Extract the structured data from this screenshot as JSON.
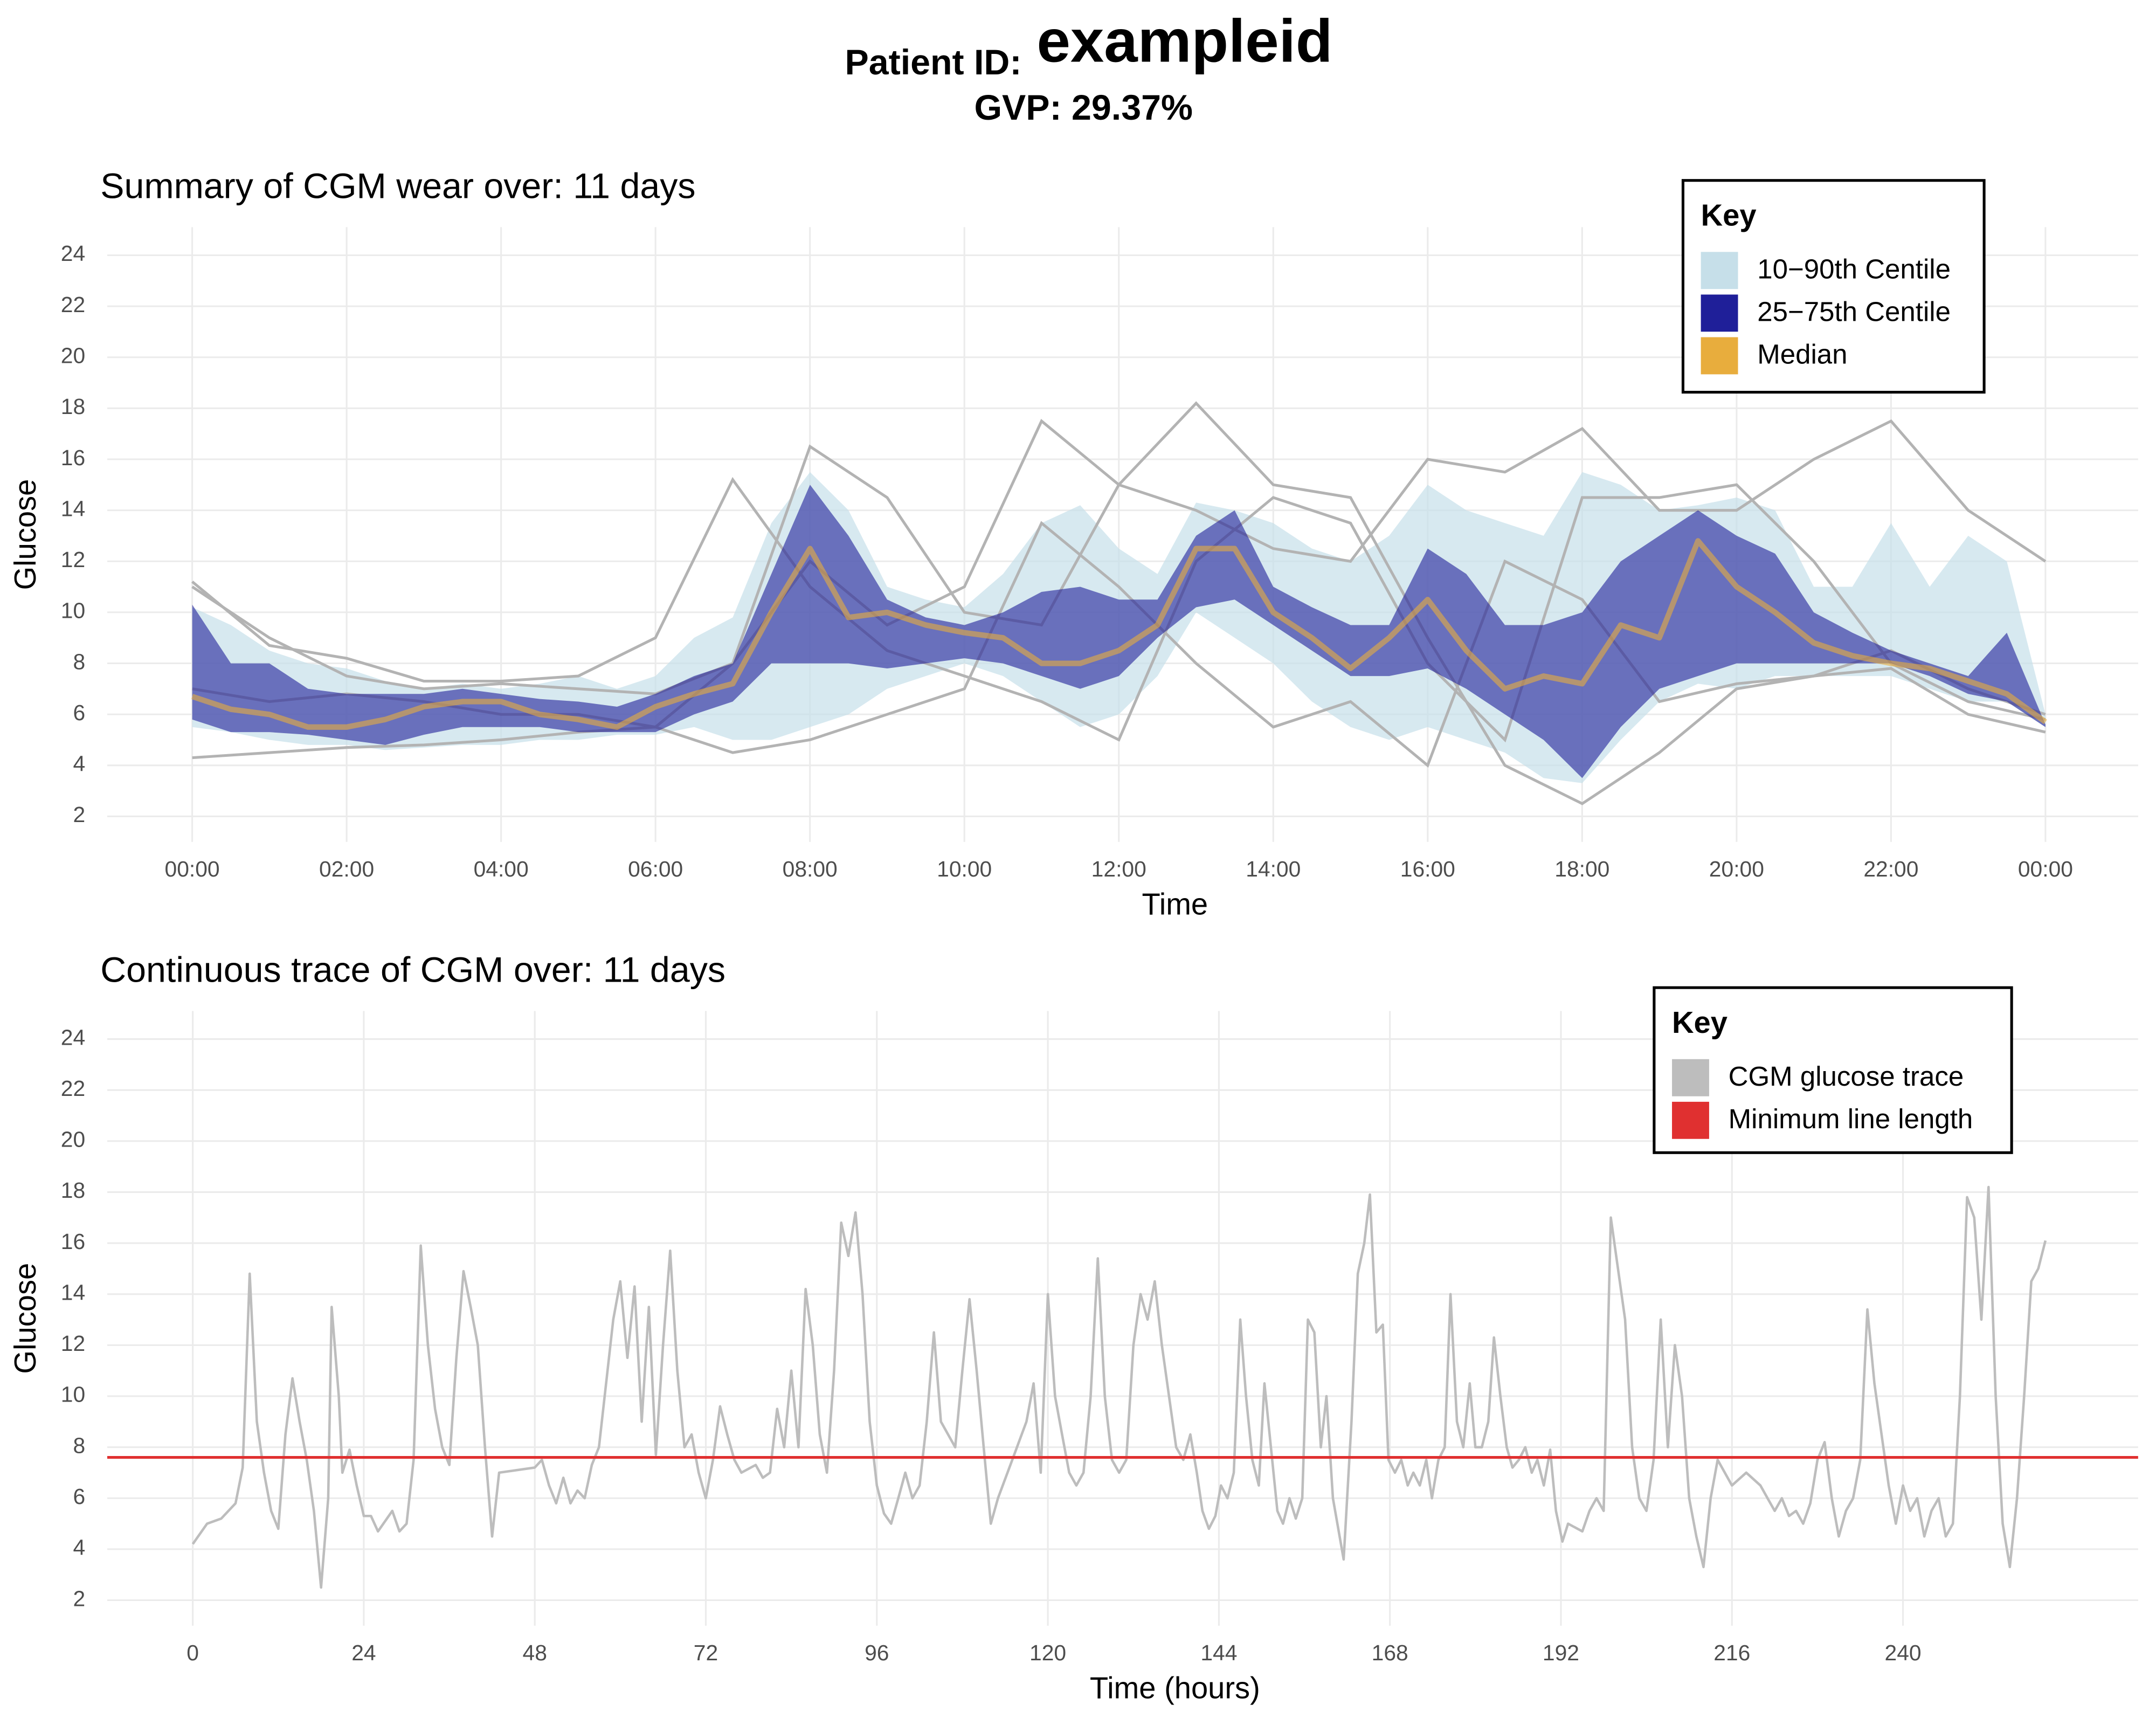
{
  "header": {
    "patient_label": "Patient ID:",
    "patient_id": "exampleid",
    "subtitle": "GVP: 29.37%"
  },
  "chart_data": [
    {
      "type": "band",
      "title": "Summary of CGM wear over: 11 days",
      "x_label": "Time",
      "y_label": "Glucose",
      "legend_title": "Key",
      "x": [
        0,
        0.5,
        1,
        1.5,
        2,
        2.5,
        3,
        3.5,
        4,
        4.5,
        5,
        5.5,
        6,
        6.5,
        7,
        7.5,
        8,
        8.5,
        9,
        9.5,
        10,
        10.5,
        11,
        11.5,
        12,
        12.5,
        13,
        13.5,
        14,
        14.5,
        15,
        15.5,
        16,
        16.5,
        17,
        17.5,
        18,
        18.5,
        19,
        19.5,
        20,
        20.5,
        21,
        21.5,
        22,
        22.5,
        23,
        23.5,
        24
      ],
      "series": [
        {
          "name": "10−90th Centile",
          "color": "#c6dfe9",
          "lower": [
            5.5,
            5.3,
            5.0,
            4.8,
            4.8,
            4.6,
            4.7,
            4.8,
            4.8,
            5.0,
            5.0,
            5.2,
            5.2,
            5.5,
            5.0,
            5.0,
            5.5,
            6.0,
            7.0,
            7.5,
            8.0,
            7.5,
            6.5,
            5.5,
            6.0,
            7.5,
            10.0,
            9.0,
            8.0,
            6.5,
            5.5,
            5.0,
            5.5,
            5.0,
            4.5,
            3.5,
            3.3,
            5.0,
            6.5,
            7.2,
            7.0,
            7.5,
            7.5,
            7.5,
            7.5,
            7.0,
            6.5,
            6.5,
            5.5
          ],
          "upper": [
            10.2,
            9.5,
            8.5,
            8.0,
            7.8,
            7.3,
            7.0,
            7.2,
            7.0,
            7.2,
            7.5,
            7.0,
            7.5,
            9.0,
            9.8,
            13.5,
            15.5,
            14.0,
            11.0,
            10.5,
            10.2,
            11.5,
            13.5,
            14.2,
            12.5,
            11.5,
            14.3,
            14.0,
            13.5,
            12.5,
            12.0,
            13.0,
            15.0,
            14.0,
            13.5,
            13.0,
            15.5,
            15.0,
            14.0,
            14.2,
            14.5,
            14.0,
            11.0,
            11.0,
            13.5,
            11.0,
            13.0,
            12.0,
            6.0
          ]
        },
        {
          "name": "25−75th Centile",
          "color": "#1f1f99",
          "lower": [
            5.8,
            5.3,
            5.3,
            5.2,
            5.0,
            4.8,
            5.2,
            5.5,
            5.5,
            5.5,
            5.3,
            5.3,
            5.3,
            6.0,
            6.5,
            8.0,
            8.0,
            8.0,
            7.8,
            8.0,
            8.2,
            8.0,
            7.5,
            7.0,
            7.5,
            9.0,
            10.2,
            10.5,
            9.5,
            8.5,
            7.5,
            7.5,
            7.8,
            7.0,
            6.0,
            5.0,
            3.5,
            5.5,
            7.0,
            7.5,
            8.0,
            8.0,
            8.0,
            8.0,
            8.0,
            7.5,
            6.8,
            6.5,
            5.5
          ],
          "upper": [
            10.3,
            8.0,
            8.0,
            7.0,
            6.8,
            6.8,
            6.8,
            7.0,
            6.8,
            6.6,
            6.5,
            6.3,
            6.8,
            7.5,
            8.0,
            11.5,
            15.0,
            13.0,
            10.5,
            9.8,
            9.5,
            10.0,
            10.8,
            11.0,
            10.5,
            10.5,
            13.0,
            14.0,
            11.0,
            10.2,
            9.5,
            9.5,
            12.5,
            11.5,
            9.5,
            9.5,
            10.0,
            12.0,
            13.0,
            14.0,
            13.0,
            12.3,
            10.0,
            9.2,
            8.5,
            8.0,
            7.5,
            9.2,
            5.6
          ]
        },
        {
          "name": "Median",
          "color": "#e8ad3d",
          "values": [
            6.7,
            6.2,
            6.0,
            5.5,
            5.5,
            5.8,
            6.3,
            6.5,
            6.5,
            6.0,
            5.8,
            5.5,
            6.3,
            6.8,
            7.2,
            10.0,
            12.5,
            9.8,
            10.0,
            9.5,
            9.2,
            9.0,
            8.0,
            8.0,
            8.5,
            9.5,
            12.5,
            12.5,
            10.0,
            9.0,
            7.8,
            9.0,
            10.5,
            8.5,
            7.0,
            7.5,
            7.2,
            9.5,
            9.0,
            12.8,
            11.0,
            10.0,
            8.8,
            8.3,
            8.0,
            7.8,
            7.3,
            6.8,
            5.7
          ]
        }
      ],
      "trace_color": "#b3b3b3",
      "trace_x": [
        0,
        1,
        2,
        3,
        4,
        5,
        6,
        7,
        8,
        9,
        10,
        11,
        12,
        13,
        14,
        15,
        16,
        17,
        18,
        19,
        20,
        21,
        22,
        23,
        24
      ],
      "traces": [
        [
          11.0,
          9.0,
          7.5,
          7.0,
          7.2,
          7.0,
          6.8,
          8.0,
          12.0,
          9.5,
          11.0,
          17.5,
          15.0,
          14.0,
          12.5,
          12.0,
          16.0,
          15.5,
          17.2,
          14.0,
          14.0,
          16.0,
          17.5,
          14.0,
          12.0
        ],
        [
          4.3,
          4.5,
          4.7,
          4.8,
          5.0,
          5.3,
          5.5,
          8.0,
          16.5,
          14.5,
          10.0,
          9.5,
          15.0,
          18.2,
          15.0,
          14.5,
          9.0,
          4.0,
          2.5,
          4.5,
          7.0,
          7.5,
          7.8,
          6.0,
          5.3
        ],
        [
          11.2,
          8.7,
          8.2,
          7.3,
          7.3,
          7.5,
          9.0,
          15.2,
          11.0,
          8.5,
          7.5,
          6.5,
          5.0,
          12.0,
          14.5,
          13.5,
          8.0,
          5.0,
          14.5,
          14.5,
          15.0,
          12.0,
          8.0,
          6.5,
          5.8
        ],
        [
          7.0,
          6.5,
          6.8,
          6.5,
          6.0,
          6.0,
          5.5,
          4.5,
          5.0,
          6.0,
          7.0,
          13.5,
          11.0,
          8.0,
          5.5,
          6.5,
          4.0,
          12.0,
          10.5,
          6.5,
          7.2,
          7.5,
          8.5,
          7.0,
          6.0
        ]
      ],
      "xlim": [
        -1.1,
        25.2
      ],
      "ylim": [
        1,
        25.1
      ],
      "xticks": [
        {
          "value": 0,
          "label": "00:00"
        },
        {
          "value": 2,
          "label": "02:00"
        },
        {
          "value": 4,
          "label": "04:00"
        },
        {
          "value": 6,
          "label": "06:00"
        },
        {
          "value": 8,
          "label": "08:00"
        },
        {
          "value": 10,
          "label": "10:00"
        },
        {
          "value": 12,
          "label": "12:00"
        },
        {
          "value": 14,
          "label": "14:00"
        },
        {
          "value": 16,
          "label": "16:00"
        },
        {
          "value": 18,
          "label": "18:00"
        },
        {
          "value": 20,
          "label": "20:00"
        },
        {
          "value": 22,
          "label": "22:00"
        },
        {
          "value": 24,
          "label": "00:00"
        }
      ],
      "yticks": [
        2,
        4,
        6,
        8,
        10,
        12,
        14,
        16,
        18,
        20,
        22,
        24
      ],
      "grid": true
    },
    {
      "type": "line",
      "title": "Continuous trace of CGM over: 11 days",
      "x_label": "Time (hours)",
      "y_label": "Glucose",
      "legend_title": "Key",
      "x": [
        0,
        2,
        4,
        6,
        7,
        8,
        9,
        10,
        11,
        12,
        13,
        14,
        15,
        16,
        17,
        18,
        19,
        19.5,
        20.5,
        21,
        22,
        23,
        24,
        25,
        26,
        28,
        29,
        30,
        31,
        32,
        33,
        34,
        35,
        36,
        37,
        38,
        39,
        40,
        41,
        42,
        43,
        48,
        49,
        50,
        51,
        52,
        53,
        54,
        55,
        56,
        57,
        59,
        60,
        61,
        62,
        63,
        64,
        65,
        66,
        67,
        68,
        69,
        70,
        71,
        72,
        73,
        74,
        75,
        76,
        77,
        79,
        80,
        81,
        82,
        83,
        84,
        85,
        86,
        87,
        88,
        89,
        90,
        91,
        92,
        93,
        94,
        95,
        96,
        97,
        98,
        99,
        100,
        101,
        102,
        103,
        104,
        105,
        106,
        107,
        108,
        109,
        110,
        111,
        112,
        113,
        115,
        117,
        118,
        119,
        120,
        121,
        122,
        123,
        124,
        125,
        126,
        127,
        128,
        129,
        130,
        131,
        132,
        133,
        134,
        135,
        136,
        137,
        138,
        139,
        140,
        140.9,
        141.7,
        142.6,
        143.5,
        144.3,
        145.2,
        146.1,
        147,
        147.8,
        148.7,
        149.6,
        150.4,
        151.3,
        152.2,
        153,
        153.9,
        154.8,
        155.7,
        156.5,
        157.4,
        158.3,
        159.1,
        160,
        161.5,
        162.6,
        163.5,
        164.4,
        165.2,
        166.1,
        167,
        167.8,
        168.7,
        169.6,
        170.5,
        171.3,
        172.2,
        173.1,
        173.9,
        174.8,
        175.7,
        176.5,
        177.4,
        178.3,
        179.2,
        180,
        180.9,
        181.8,
        182.6,
        183.5,
        184.4,
        185.2,
        186.1,
        187,
        187.9,
        188.7,
        189.6,
        190.5,
        191.3,
        192.2,
        193,
        195,
        196,
        197,
        198,
        199,
        200,
        201,
        202,
        203,
        204,
        205,
        206,
        207,
        208,
        209,
        210,
        211,
        212,
        213,
        214,
        215,
        216,
        218,
        220,
        221,
        222,
        223,
        224,
        225,
        226,
        227,
        228,
        229,
        230,
        231,
        232,
        233,
        234,
        235,
        236,
        237,
        238,
        239,
        240,
        241,
        242,
        243,
        244,
        245,
        246,
        247,
        248,
        249,
        250,
        251,
        252,
        253,
        254,
        255,
        256,
        257,
        258,
        259,
        260
      ],
      "series": [
        {
          "name": "CGM glucose trace",
          "color": "#bdbdbd",
          "values": [
            4.2,
            5.0,
            5.2,
            5.8,
            7.2,
            14.8,
            9.0,
            7.0,
            5.5,
            4.8,
            8.5,
            10.7,
            9.0,
            7.5,
            5.5,
            2.5,
            6.0,
            13.5,
            10.0,
            7.0,
            7.9,
            6.5,
            5.3,
            5.3,
            4.7,
            5.5,
            4.7,
            5.0,
            7.5,
            15.9,
            12.0,
            9.5,
            8.0,
            7.3,
            11.5,
            14.9,
            13.5,
            12.0,
            8.0,
            4.5,
            7.0,
            7.2,
            7.5,
            6.5,
            5.8,
            6.8,
            5.8,
            6.3,
            6.0,
            7.3,
            8.0,
            13.0,
            14.5,
            11.5,
            14.3,
            9.0,
            13.5,
            7.7,
            12.0,
            15.7,
            11.0,
            8.0,
            8.5,
            7.0,
            6.0,
            7.5,
            9.6,
            8.5,
            7.5,
            7.0,
            7.3,
            6.8,
            7.0,
            9.5,
            8.0,
            11.0,
            8.0,
            14.2,
            12.0,
            8.5,
            7.0,
            11.0,
            16.8,
            15.5,
            17.2,
            14.0,
            9.0,
            6.5,
            5.4,
            5.0,
            6.0,
            7.0,
            6.0,
            6.5,
            9.0,
            12.5,
            9.0,
            8.5,
            8.0,
            11.0,
            13.8,
            11.0,
            8.0,
            5.0,
            6.0,
            7.5,
            9.0,
            10.5,
            7.0,
            14.0,
            10.0,
            8.5,
            7.0,
            6.5,
            7.0,
            10.0,
            15.4,
            10.0,
            7.5,
            7.0,
            7.5,
            12.0,
            14.0,
            13.0,
            14.5,
            12.0,
            10.0,
            8.0,
            7.5,
            8.5,
            7.0,
            5.5,
            4.8,
            5.3,
            6.5,
            6.0,
            7.0,
            13.0,
            10.0,
            7.5,
            6.5,
            10.5,
            8.0,
            5.5,
            5.0,
            6.0,
            5.2,
            6.0,
            13.0,
            12.5,
            8.0,
            10.0,
            6.0,
            3.6,
            9.0,
            14.8,
            16.0,
            17.9,
            12.5,
            12.8,
            7.5,
            7.0,
            7.5,
            6.5,
            7.0,
            6.5,
            7.5,
            6.0,
            7.5,
            8.0,
            14.0,
            9.0,
            8.0,
            10.5,
            8.0,
            8.0,
            9.0,
            12.3,
            10.0,
            8.0,
            7.2,
            7.5,
            8.0,
            7.0,
            7.5,
            6.5,
            7.9,
            5.5,
            4.3,
            5.0,
            4.7,
            5.5,
            6.0,
            5.5,
            17.0,
            15.0,
            13.0,
            8.0,
            6.0,
            5.5,
            7.5,
            13.0,
            8.0,
            12.0,
            10.0,
            6.0,
            4.5,
            3.3,
            6.0,
            7.5,
            7.0,
            6.5,
            7.0,
            6.5,
            6.0,
            5.5,
            6.0,
            5.3,
            5.5,
            5.0,
            5.8,
            7.5,
            8.2,
            6.0,
            4.5,
            5.5,
            6.0,
            7.5,
            13.4,
            10.5,
            8.5,
            6.5,
            5.0,
            6.5,
            5.5,
            6.0,
            4.5,
            5.5,
            6.0,
            4.5,
            5.0,
            10.0,
            17.8,
            17.0,
            13.0,
            18.2,
            10.0,
            5.0,
            3.3,
            6.0,
            10.0,
            14.5,
            15.0,
            16.1
          ]
        }
      ],
      "hline": {
        "name": "Minimum line length",
        "color": "#e03030",
        "value": 7.6
      },
      "xlim": [
        -12,
        273
      ],
      "ylim": [
        1,
        25.1
      ],
      "xticks": [
        0,
        24,
        48,
        72,
        96,
        120,
        144,
        168,
        192,
        216,
        240
      ],
      "yticks": [
        2,
        4,
        6,
        8,
        10,
        12,
        14,
        16,
        18,
        20,
        22,
        24
      ],
      "grid": true
    }
  ]
}
